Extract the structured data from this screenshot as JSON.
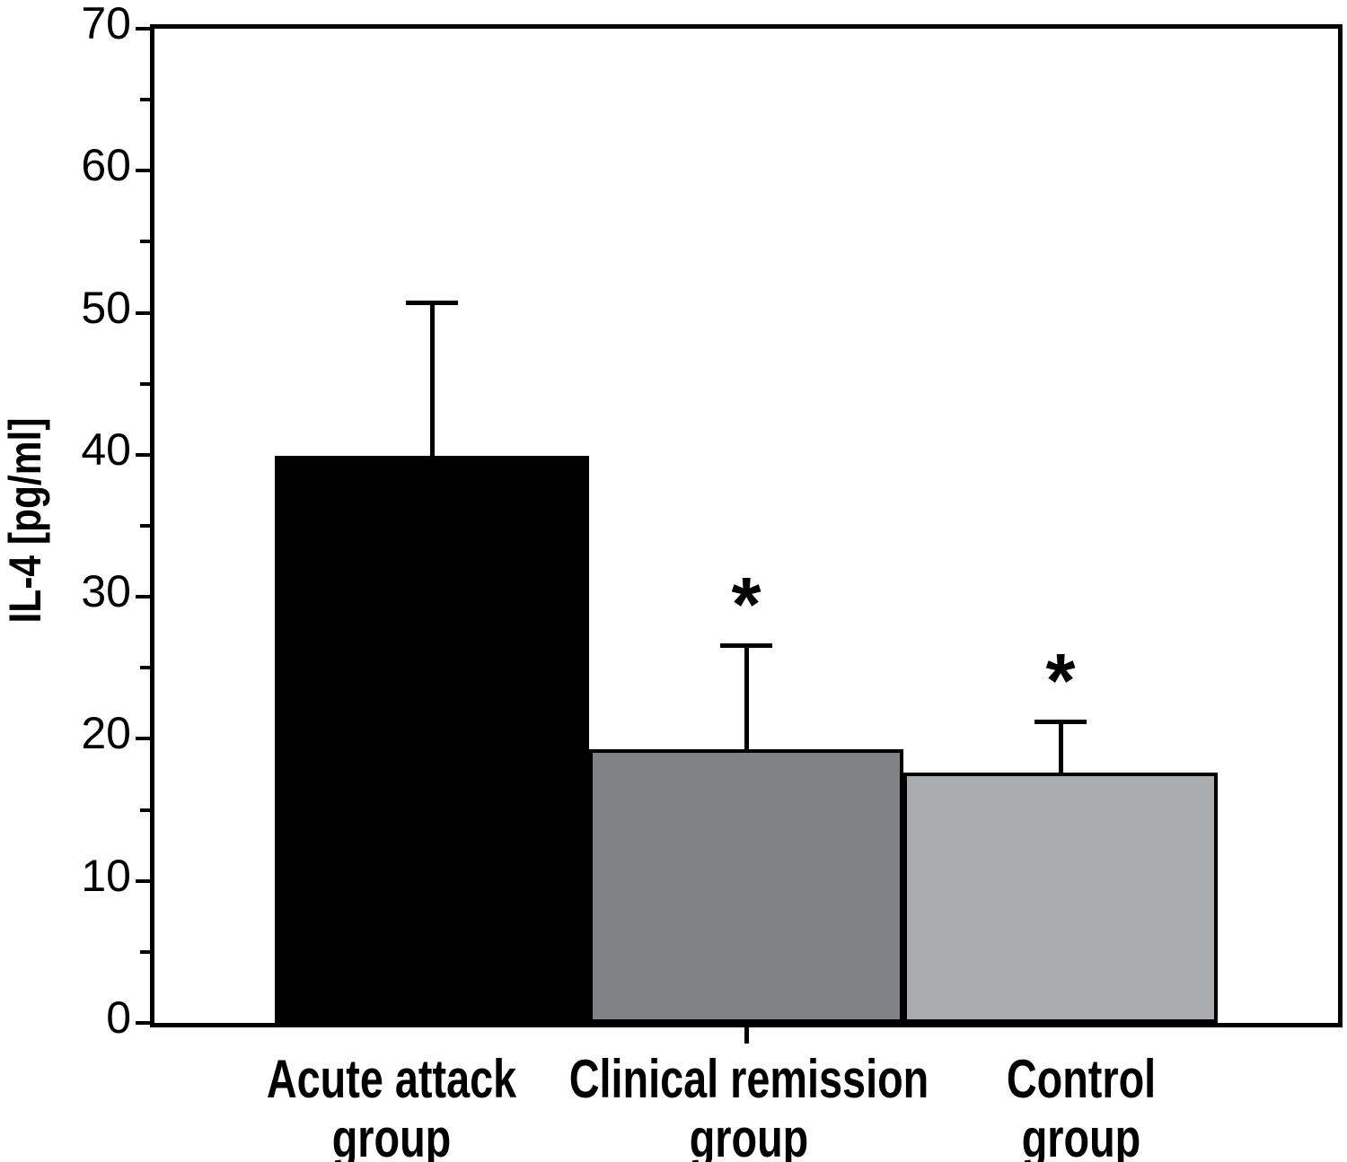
{
  "chart_data": {
    "type": "bar",
    "title": "",
    "ylabel": "IL-4 [pg/ml]",
    "xlabel": "",
    "ylim": [
      0,
      70
    ],
    "y_major_ticks": [
      0,
      10,
      20,
      30,
      40,
      50,
      60,
      70
    ],
    "y_minor_tick_step": 5,
    "grid": false,
    "legend_position": "none",
    "categories": [
      "Acute attack group",
      "Clinical remission group",
      "Control group"
    ],
    "category_label_lines": [
      [
        "Acute attack",
        "group"
      ],
      [
        "Clinical remission",
        "group"
      ],
      [
        "Control",
        "group"
      ]
    ],
    "values": [
      39.9,
      19.3,
      17.6
    ],
    "error_plus": [
      10.8,
      7.3,
      3.6
    ],
    "significance_markers": [
      "",
      "*",
      "*"
    ],
    "bar_fill_colors": [
      "#000000",
      "#808285",
      "#a9abad"
    ],
    "bar_border_color": "#000000",
    "error_bar_color": "#000000",
    "axis_color": "#000000",
    "background_color": "#ffffff"
  }
}
